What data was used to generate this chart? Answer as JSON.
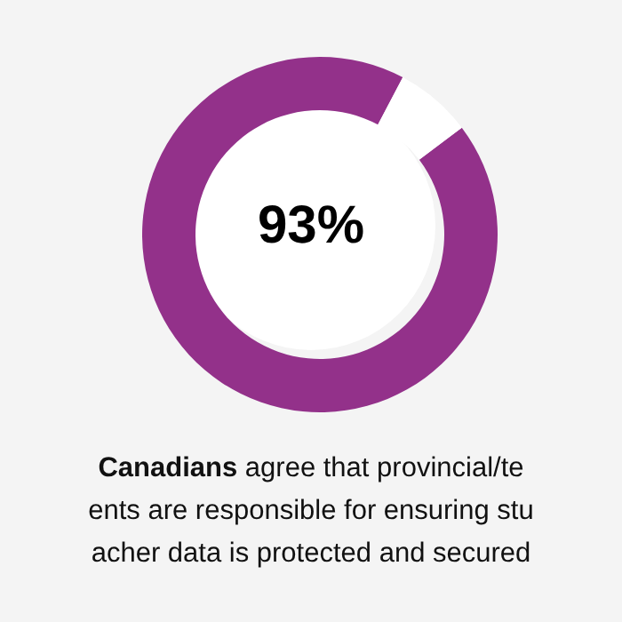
{
  "chart_data": {
    "type": "donut",
    "categories": [
      null,
      null
    ],
    "values": [
      93,
      7
    ],
    "colors": [
      "#93318a",
      "#ffffff"
    ],
    "value_labels": [
      "93%",
      null
    ],
    "annotations": [
      "Canadians agree that provincial/te",
      "ents are responsible for ensuring stu",
      "acher data is protected and secured"
    ]
  }
}
